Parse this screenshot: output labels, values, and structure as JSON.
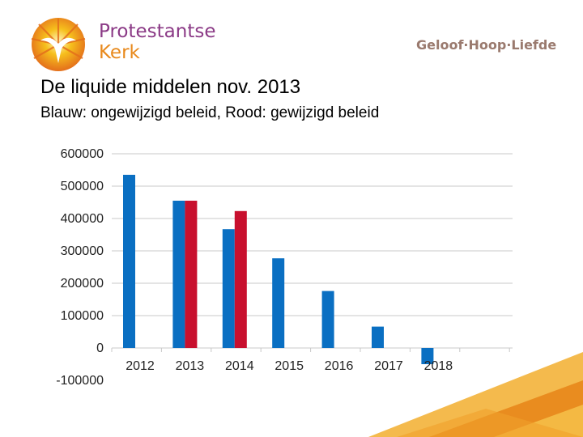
{
  "brand": {
    "line1": "Protestantse",
    "line2": "Kerk",
    "tagline": "Geloof·Hoop·Liefde",
    "colors": {
      "purple": "#8b3a86",
      "orange": "#e8891c",
      "yellow": "#f6bf1c",
      "grey": "#7b5d55"
    }
  },
  "slide": {
    "title": "De liquide middelen nov. 2013",
    "subtitle": "Blauw: ongewijzigd beleid, Rood: gewijzigd beleid"
  },
  "chart_data": {
    "type": "bar",
    "categories": [
      "2012",
      "2013",
      "2014",
      "2015",
      "2016",
      "2017",
      "2018"
    ],
    "series": [
      {
        "name": "ongewijzigd beleid",
        "color": "#0a6fc2",
        "values": [
          535000,
          455000,
          367000,
          277000,
          176000,
          66000,
          -50000
        ]
      },
      {
        "name": "gewijzigd beleid",
        "color": "#c8102e",
        "values": [
          null,
          455000,
          423000,
          null,
          null,
          null,
          null
        ]
      }
    ],
    "yticks": [
      "600000",
      "500000",
      "400000",
      "300000",
      "200000",
      "100000",
      "0",
      "-100000"
    ],
    "ylim": [
      -100000,
      600000
    ],
    "grid": true
  }
}
